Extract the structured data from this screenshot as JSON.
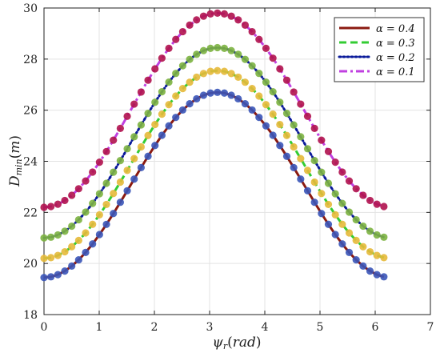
{
  "chart_data": {
    "type": "line",
    "xlabel": "ψ_r(rad)",
    "ylabel": "D_min(m)",
    "xlim": [
      0,
      7
    ],
    "ylim": [
      18,
      30
    ],
    "xticks": [
      "0",
      "1",
      "2",
      "3",
      "4",
      "5",
      "6",
      "7"
    ],
    "yticks": [
      "18",
      "20",
      "22",
      "24",
      "26",
      "28",
      "30"
    ],
    "grid": true,
    "legend_position": "top-right",
    "x_range": [
      0,
      6.1575
    ],
    "point_count": 50,
    "series": [
      {
        "name": "α = 0.4",
        "line_color": "#8b1a10",
        "line_style": "solid",
        "marker_color": "#3a55b8",
        "min": 19.45,
        "max": 26.7
      },
      {
        "name": "α = 0.3",
        "line_color": "#33cc33",
        "line_style": "dashed",
        "marker_color": "#e6b93a",
        "min": 20.2,
        "max": 27.55
      },
      {
        "name": "α = 0.2",
        "line_color": "#0a1a9a",
        "line_style": "dotted",
        "marker_color": "#7cb340",
        "min": 21.0,
        "max": 28.45
      },
      {
        "name": "α = 0.1",
        "line_color": "#c040e0",
        "line_style": "dashdot",
        "marker_color": "#b0124e",
        "min": 22.2,
        "max": 29.8
      }
    ]
  }
}
